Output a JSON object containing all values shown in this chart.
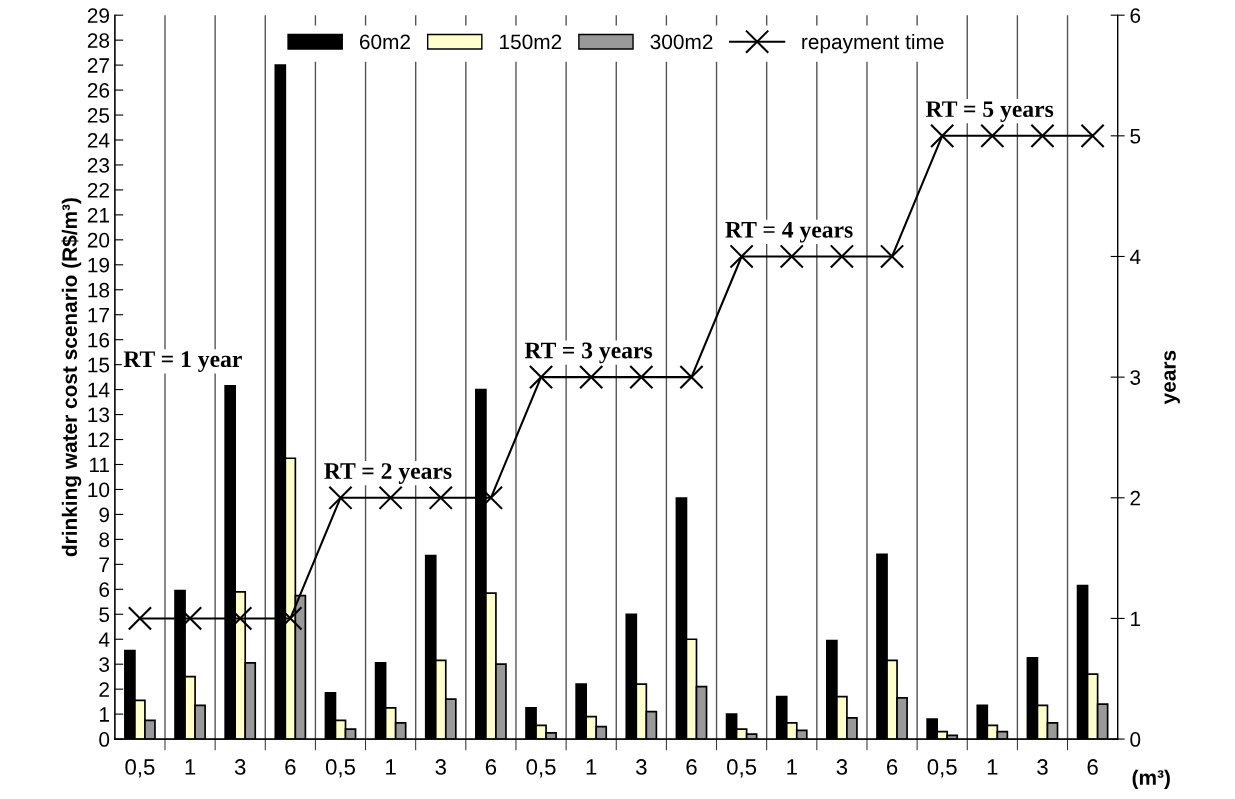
{
  "chart_data": {
    "type": "bar",
    "categories": [
      "0,5",
      "1",
      "3",
      "6",
      "0,5",
      "1",
      "3",
      "6",
      "0,5",
      "1",
      "3",
      "6",
      "0,5",
      "1",
      "3",
      "6",
      "0,5",
      "1",
      "3",
      "6"
    ],
    "series": [
      {
        "name": "60m2",
        "color": "#000000",
        "values": [
          3.55,
          5.95,
          14.15,
          27.0,
          1.85,
          3.05,
          7.35,
          14.0,
          1.25,
          2.2,
          5.0,
          9.65,
          1.0,
          1.7,
          3.95,
          7.4,
          0.8,
          1.35,
          3.25,
          6.15
        ]
      },
      {
        "name": "150m2",
        "color": "#ffffcc",
        "values": [
          1.55,
          2.5,
          5.9,
          11.25,
          0.75,
          1.25,
          3.15,
          5.85,
          0.55,
          0.9,
          2.2,
          4.0,
          0.4,
          0.65,
          1.7,
          3.15,
          0.3,
          0.55,
          1.35,
          2.6
        ]
      },
      {
        "name": "300m2",
        "color": "#999999",
        "values": [
          0.75,
          1.35,
          3.05,
          5.75,
          0.4,
          0.65,
          1.6,
          3.0,
          0.25,
          0.5,
          1.1,
          2.1,
          0.2,
          0.35,
          0.85,
          1.65,
          0.15,
          0.3,
          0.65,
          1.4
        ]
      },
      {
        "name": "repayment time",
        "type": "line",
        "axis": "y2",
        "color": "#000000",
        "marker": "cross",
        "values": [
          1,
          1,
          1,
          1,
          2,
          2,
          2,
          2,
          3,
          3,
          3,
          3,
          4,
          4,
          4,
          4,
          5,
          5,
          5,
          5
        ]
      }
    ],
    "ylabel": "drinking water cost scenario (R$/m³)",
    "y2label": "years",
    "annotations": [
      "RT = 1 year",
      "RT = 2 years",
      "RT = 3 years",
      "RT = 4 years",
      "RT = 5 years",
      "(m³)"
    ],
    "ylim": [
      0,
      29
    ],
    "yticks": [
      0,
      1,
      2,
      3,
      4,
      5,
      6,
      7,
      8,
      9,
      10,
      11,
      12,
      13,
      14,
      15,
      16,
      17,
      18,
      19,
      20,
      21,
      22,
      23,
      24,
      25,
      26,
      27,
      28,
      29
    ],
    "y2lim": [
      0,
      6
    ],
    "y2ticks": [
      0,
      1,
      2,
      3,
      4,
      5,
      6
    ],
    "grid": "x",
    "legend": "top"
  }
}
